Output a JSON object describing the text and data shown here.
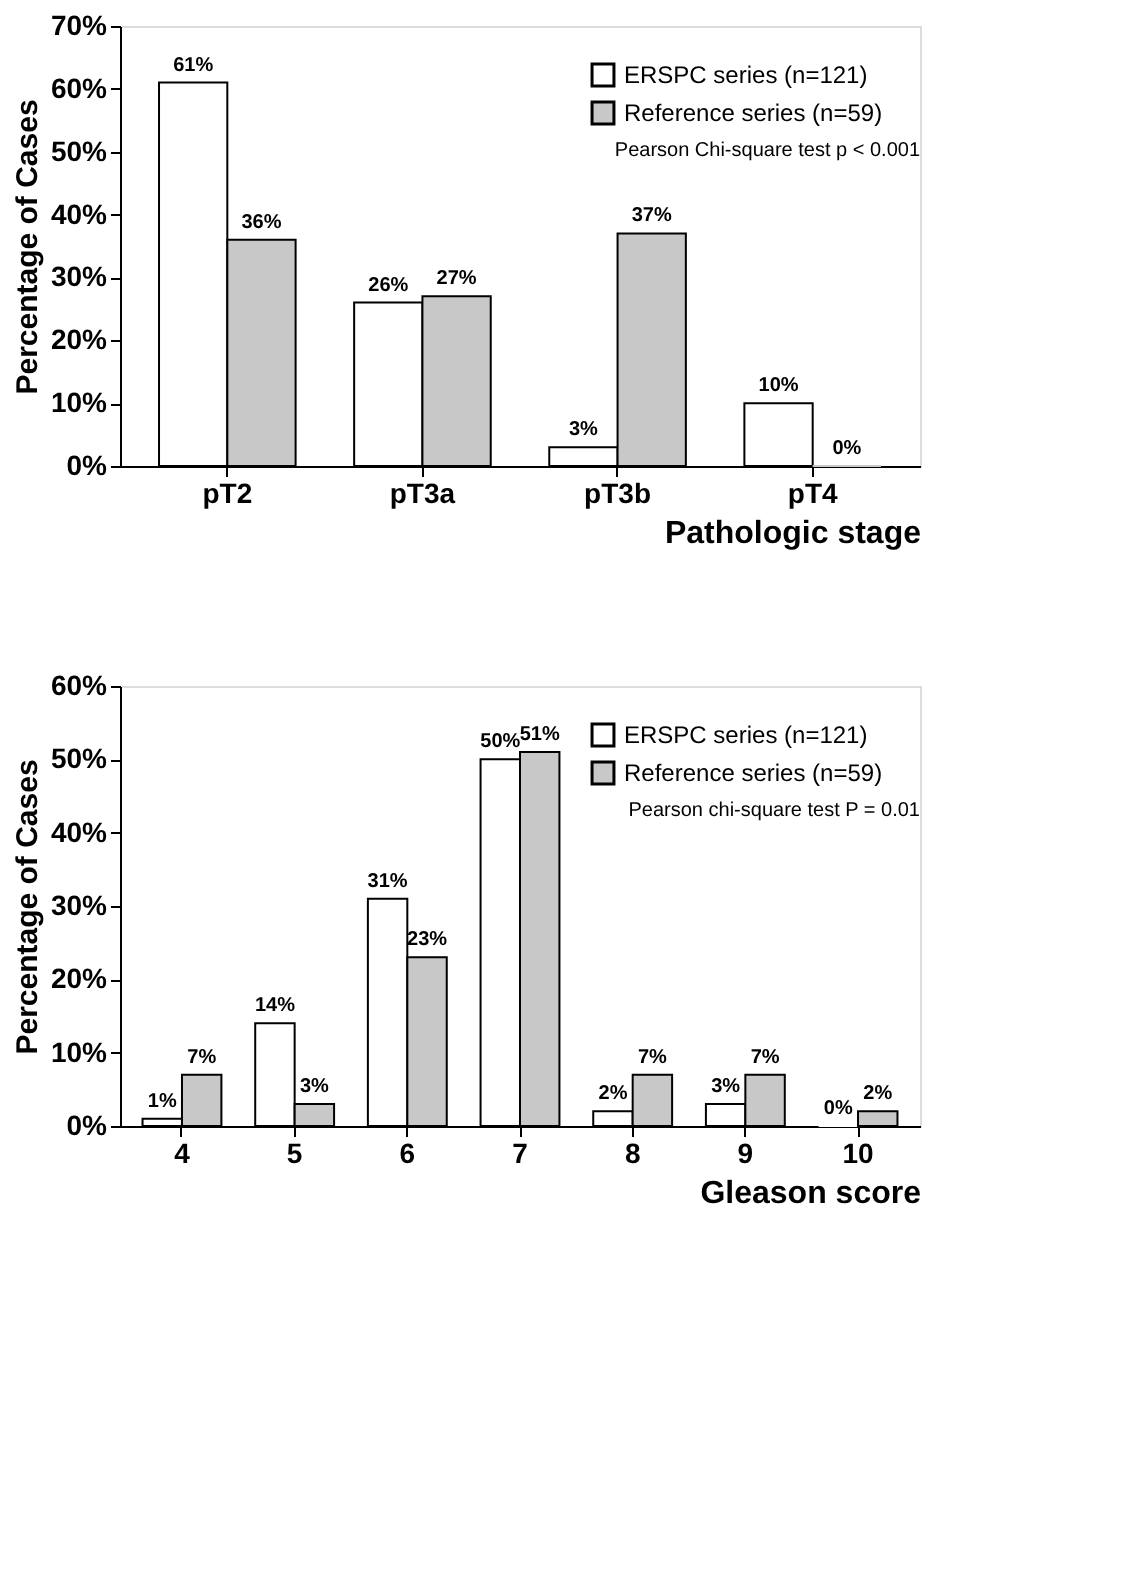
{
  "chart_data": [
    {
      "type": "bar",
      "xlabel": "Pathologic stage",
      "ylabel": "Percentage of Cases",
      "categories": [
        "pT2",
        "pT3a",
        "pT3b",
        "pT4"
      ],
      "series": [
        {
          "name": "ERSPC series (n=121)",
          "color": "#ffffff",
          "values": [
            61,
            26,
            3,
            10
          ],
          "value_labels": [
            "61%",
            "26%",
            "3%",
            "10%"
          ]
        },
        {
          "name": "Reference series (n=59)",
          "color": "#c8c8c8",
          "values": [
            36,
            27,
            37,
            0
          ],
          "value_labels": [
            "36%",
            "27%",
            "37%",
            "0%"
          ]
        }
      ],
      "ylim": [
        0,
        70
      ],
      "yticks": [
        {
          "value": 0,
          "label": "0%"
        },
        {
          "value": 10,
          "label": "10%"
        },
        {
          "value": 20,
          "label": "20%"
        },
        {
          "value": 30,
          "label": "30%"
        },
        {
          "value": 40,
          "label": "40%"
        },
        {
          "value": 50,
          "label": "50%"
        },
        {
          "value": 60,
          "label": "60%"
        },
        {
          "value": 70,
          "label": "70%"
        }
      ],
      "grid": false,
      "legend": "top right",
      "annotations": [
        "Pearson Chi-square test p < 0.001"
      ]
    },
    {
      "type": "bar",
      "xlabel": "Gleason score",
      "ylabel": "Percentage of Cases",
      "categories": [
        "4",
        "5",
        "6",
        "7",
        "8",
        "9",
        "10"
      ],
      "series": [
        {
          "name": "ERSPC series (n=121)",
          "color": "#ffffff",
          "values": [
            1,
            14,
            31,
            50,
            2,
            3,
            0
          ],
          "value_labels": [
            "1%",
            "14%",
            "31%",
            "50%",
            "2%",
            "3%",
            "0%"
          ]
        },
        {
          "name": "Reference series (n=59)",
          "color": "#c8c8c8",
          "values": [
            7,
            3,
            23,
            51,
            7,
            7,
            2
          ],
          "value_labels": [
            "7%",
            "3%",
            "23%",
            "51%",
            "7%",
            "7%",
            "2%"
          ]
        }
      ],
      "ylim": [
        0,
        60
      ],
      "yticks": [
        {
          "value": 0,
          "label": "0%"
        },
        {
          "value": 10,
          "label": "10%"
        },
        {
          "value": 20,
          "label": "20%"
        },
        {
          "value": 30,
          "label": "30%"
        },
        {
          "value": 40,
          "label": "40%"
        },
        {
          "value": 50,
          "label": "50%"
        },
        {
          "value": 60,
          "label": "60%"
        }
      ],
      "grid": false,
      "legend": "top right",
      "annotations": [
        "Pearson chi-square test P = 0.01"
      ]
    }
  ]
}
